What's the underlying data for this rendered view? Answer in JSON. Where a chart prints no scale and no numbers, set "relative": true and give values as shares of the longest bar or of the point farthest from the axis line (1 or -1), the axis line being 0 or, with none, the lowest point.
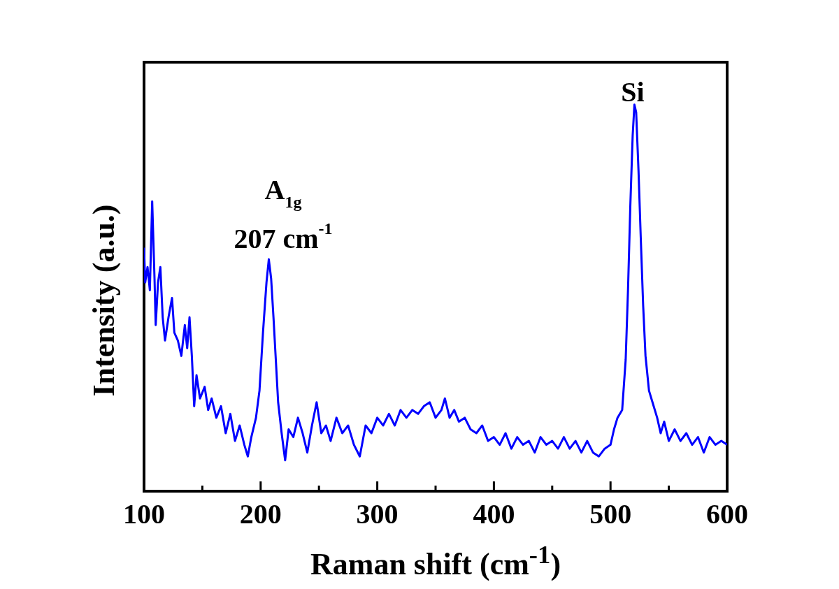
{
  "chart_data": {
    "type": "line",
    "xlabel": "Raman shift (cm$^{-1}$)",
    "ylabel": "Intensity (a.u.)",
    "relative": true,
    "xlim": [
      100,
      600
    ],
    "xticks": [
      100,
      {
        "value": 150,
        "label": null
      },
      200,
      {
        "value": 250,
        "label": null
      },
      300,
      {
        "value": 350,
        "label": null
      },
      400,
      {
        "value": 450,
        "label": null
      },
      500,
      {
        "value": 550,
        "label": null
      },
      600
    ],
    "grid": false,
    "legend": false,
    "marker": "none",
    "line_style": "solid",
    "annotations": [
      "A$_{1g}$",
      "207 cm$^{-1}$",
      "Si"
    ],
    "series": [
      {
        "color": "#0000ff",
        "x": [
          100,
          101,
          103,
          105,
          107,
          109,
          110,
          112,
          114,
          116,
          118,
          121,
          124,
          126,
          129,
          132,
          135,
          137,
          139,
          141,
          143,
          145,
          148,
          152,
          155,
          158,
          162,
          166,
          170,
          174,
          178,
          182,
          186,
          189,
          192,
          196,
          199,
          202,
          205,
          207,
          209,
          211,
          213,
          215,
          218,
          221,
          224,
          228,
          232,
          236,
          240,
          244,
          248,
          252,
          256,
          260,
          265,
          270,
          275,
          280,
          285,
          290,
          295,
          300,
          305,
          310,
          315,
          320,
          325,
          330,
          335,
          340,
          345,
          350,
          355,
          358,
          362,
          366,
          370,
          375,
          380,
          385,
          390,
          395,
          400,
          405,
          410,
          415,
          420,
          425,
          430,
          435,
          440,
          445,
          450,
          455,
          460,
          465,
          470,
          475,
          480,
          485,
          490,
          495,
          500,
          503,
          506,
          510,
          513,
          515,
          517,
          519,
          520.5,
          522,
          524,
          526,
          528,
          530,
          533,
          536,
          540,
          543,
          546,
          550,
          555,
          560,
          565,
          570,
          575,
          580,
          585,
          590,
          595,
          600
        ],
        "values": [
          0.63,
          0.54,
          0.58,
          0.52,
          0.75,
          0.55,
          0.43,
          0.54,
          0.58,
          0.45,
          0.39,
          0.45,
          0.5,
          0.41,
          0.39,
          0.35,
          0.43,
          0.37,
          0.45,
          0.35,
          0.22,
          0.3,
          0.24,
          0.27,
          0.21,
          0.24,
          0.19,
          0.22,
          0.15,
          0.2,
          0.13,
          0.17,
          0.12,
          0.09,
          0.14,
          0.19,
          0.26,
          0.41,
          0.54,
          0.6,
          0.55,
          0.45,
          0.34,
          0.23,
          0.15,
          0.08,
          0.16,
          0.14,
          0.19,
          0.15,
          0.1,
          0.17,
          0.23,
          0.15,
          0.17,
          0.13,
          0.19,
          0.15,
          0.17,
          0.12,
          0.09,
          0.17,
          0.15,
          0.19,
          0.17,
          0.2,
          0.17,
          0.21,
          0.19,
          0.21,
          0.2,
          0.22,
          0.23,
          0.19,
          0.21,
          0.24,
          0.19,
          0.21,
          0.18,
          0.19,
          0.16,
          0.15,
          0.17,
          0.13,
          0.14,
          0.12,
          0.15,
          0.11,
          0.14,
          0.12,
          0.13,
          0.1,
          0.14,
          0.12,
          0.13,
          0.11,
          0.14,
          0.11,
          0.13,
          0.1,
          0.13,
          0.1,
          0.09,
          0.11,
          0.12,
          0.16,
          0.19,
          0.21,
          0.34,
          0.52,
          0.74,
          0.92,
          1,
          0.98,
          0.83,
          0.65,
          0.48,
          0.35,
          0.26,
          0.23,
          0.19,
          0.15,
          0.18,
          0.13,
          0.16,
          0.13,
          0.15,
          0.12,
          0.14,
          0.1,
          0.14,
          0.12,
          0.13,
          0.12
        ]
      }
    ]
  }
}
